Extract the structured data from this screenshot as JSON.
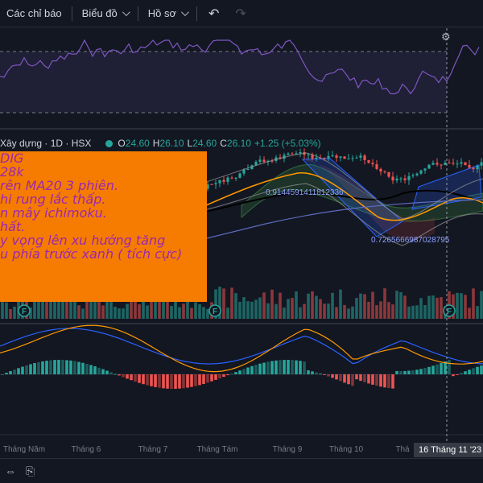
{
  "toolbar": {
    "indicators_label": "Các chỉ báo",
    "chart_type_label": "Biểu đồ",
    "profile_label": "Hồ sơ",
    "undo_icon": "undo-icon",
    "redo_icon": "redo-icon"
  },
  "legend": {
    "symbol_text": "Xây dựng · 1D · HSX",
    "open_key": "O",
    "open": "24.60",
    "high_key": "H",
    "high": "26.10",
    "low_key": "L",
    "low": "24.60",
    "close_key": "C",
    "close": "26.10",
    "change": "+1.25 (+5.03%)"
  },
  "note": {
    "lines": [
      "DIG",
      "28k",
      "",
      "rên MA20 3 phiên.",
      "hi rung lắc thấp.",
      "n mây ichimoku.",
      "hất.",
      "y vọng lên xu hướng tăng",
      "u phía trước xanh ( tích cực)"
    ]
  },
  "annotations": {
    "label_a": "0.9144591411812336",
    "label_b": "0.7265666987028795"
  },
  "time_axis": {
    "labels": [
      "Tháng Năm",
      "Tháng 6",
      "Tháng 7",
      "Tháng Tám",
      "Tháng 9",
      "Tháng 10",
      "Thá"
    ],
    "crosshair_label": "16 Tháng 11 '23"
  },
  "markers": [
    "F",
    "F",
    "F"
  ],
  "colors": {
    "background": "#131722",
    "up": "#26a69a",
    "down": "#ef5350",
    "rsi": "#7e57c2",
    "ma_black": "#000000",
    "ma_orange": "#ff9800",
    "note_bg": "#f57c00",
    "note_text": "#9c27b0",
    "channel": "#2962ff"
  }
}
